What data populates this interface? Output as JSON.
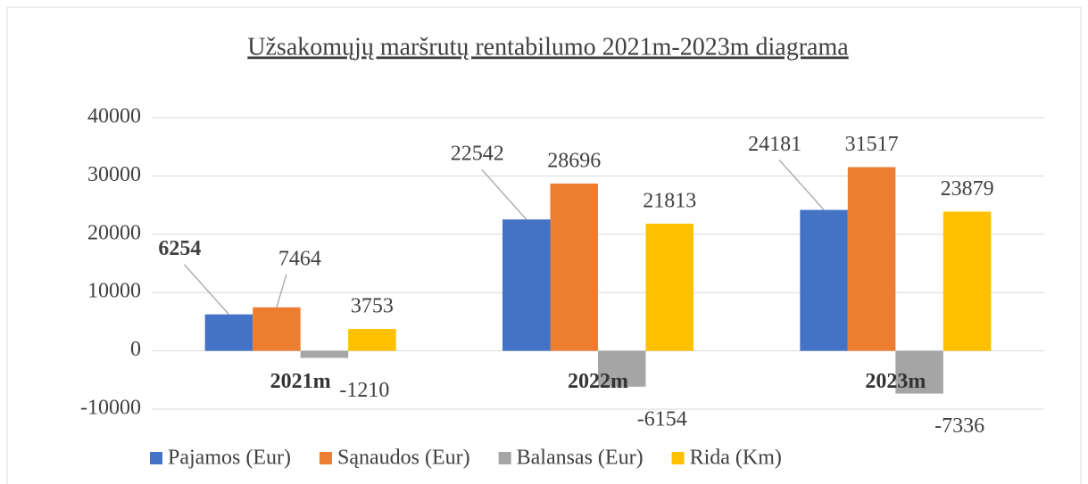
{
  "chart_data": {
    "type": "bar",
    "title": "Užsakomųjų maršrutų rentabilumo 2021m-2023m diagrama",
    "categories": [
      "2021m",
      "2022m",
      "2023m"
    ],
    "series": [
      {
        "name": "Pajamos (Eur)",
        "color": "#4472c4",
        "values": [
          6254,
          22542,
          24181
        ]
      },
      {
        "name": "Sąnaudos (Eur)",
        "color": "#ed7d31",
        "values": [
          7464,
          28696,
          31517
        ]
      },
      {
        "name": "Balansas (Eur)",
        "color": "#a5a5a5",
        "values": [
          -1210,
          -6154,
          -7336
        ]
      },
      {
        "name": "Rida (Km)",
        "color": "#ffc000",
        "values": [
          3753,
          21813,
          23879
        ]
      }
    ],
    "ylim": [
      -10000,
      40000
    ],
    "yticks": [
      -10000,
      0,
      10000,
      20000,
      30000,
      40000
    ],
    "grid": true,
    "legend": "bottom"
  }
}
